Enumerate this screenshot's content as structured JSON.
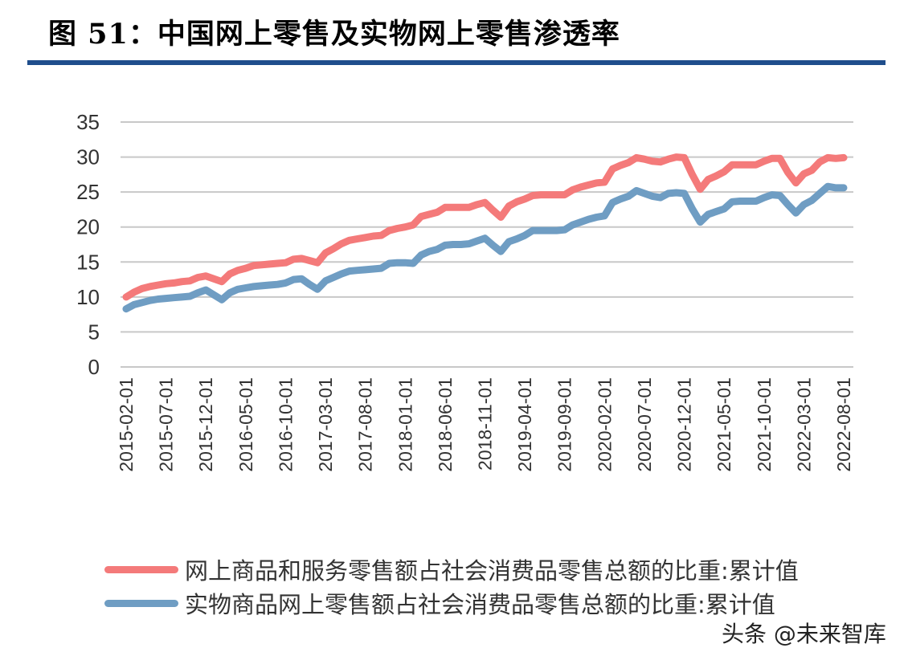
{
  "title": "图 51：中国网上零售及实物网上零售渗透率",
  "watermark": "头条 @未来智库",
  "colors": {
    "series1": "#f47a7a",
    "series2": "#6f9dc3",
    "title_rule": "#1f4e8c",
    "grid": "#c8c8c8"
  },
  "chart_data": {
    "type": "line",
    "title": "",
    "xlabel": "",
    "ylabel": "",
    "ylim": [
      0,
      35
    ],
    "yticks": [
      "0",
      "5",
      "10",
      "15",
      "20",
      "25",
      "30",
      "35"
    ],
    "grid": true,
    "legend_placement": "bottom",
    "xtick_labels": [
      "2015-02-01",
      "2015-07-01",
      "2015-12-01",
      "2016-05-01",
      "2016-10-01",
      "2017-03-01",
      "2017-08-01",
      "2018-01-01",
      "2018-06-01",
      "2018-11-01",
      "2019-04-01",
      "2019-09-01",
      "2020-02-01",
      "2020-07-01",
      "2020-12-01",
      "2021-05-01",
      "2021-10-01",
      "2022-03-01",
      "2022-08-01"
    ],
    "x": [
      "2015-02",
      "2015-03",
      "2015-04",
      "2015-05",
      "2015-06",
      "2015-07",
      "2015-08",
      "2015-09",
      "2015-10",
      "2015-11",
      "2015-12",
      "2016-01",
      "2016-02",
      "2016-03",
      "2016-04",
      "2016-05",
      "2016-06",
      "2016-07",
      "2016-08",
      "2016-09",
      "2016-10",
      "2016-11",
      "2016-12",
      "2017-01",
      "2017-02",
      "2017-03",
      "2017-04",
      "2017-05",
      "2017-06",
      "2017-07",
      "2017-08",
      "2017-09",
      "2017-10",
      "2017-11",
      "2017-12",
      "2018-01",
      "2018-02",
      "2018-03",
      "2018-04",
      "2018-05",
      "2018-06",
      "2018-07",
      "2018-08",
      "2018-09",
      "2018-10",
      "2018-11",
      "2018-12",
      "2019-01",
      "2019-02",
      "2019-03",
      "2019-04",
      "2019-05",
      "2019-06",
      "2019-07",
      "2019-08",
      "2019-09",
      "2019-10",
      "2019-11",
      "2019-12",
      "2020-01",
      "2020-02",
      "2020-03",
      "2020-04",
      "2020-05",
      "2020-06",
      "2020-07",
      "2020-08",
      "2020-09",
      "2020-10",
      "2020-11",
      "2020-12",
      "2021-01",
      "2021-02",
      "2021-03",
      "2021-04",
      "2021-05",
      "2021-06",
      "2021-07",
      "2021-08",
      "2021-09",
      "2021-10",
      "2021-11",
      "2021-12",
      "2022-01",
      "2022-02",
      "2022-03",
      "2022-04",
      "2022-05",
      "2022-06",
      "2022-07",
      "2022-08"
    ],
    "series": [
      {
        "name": "网上商品和服务零售额占社会消费品零售总额的比重:累计值",
        "color": "#f47a7a",
        "values": [
          10.0,
          10.7,
          11.2,
          11.5,
          11.7,
          11.9,
          12.0,
          12.2,
          12.3,
          12.8,
          13.0,
          12.6,
          12.2,
          13.3,
          13.8,
          14.1,
          14.5,
          14.6,
          14.7,
          14.8,
          14.9,
          15.4,
          15.5,
          15.2,
          14.9,
          16.3,
          16.9,
          17.6,
          18.1,
          18.3,
          18.5,
          18.7,
          18.8,
          19.5,
          19.8,
          20.0,
          20.3,
          21.5,
          21.8,
          22.1,
          22.8,
          22.8,
          22.8,
          22.8,
          23.2,
          23.5,
          22.4,
          21.4,
          23.0,
          23.6,
          24.0,
          24.5,
          24.6,
          24.6,
          24.6,
          24.6,
          25.3,
          25.7,
          26.0,
          26.3,
          26.4,
          28.3,
          28.8,
          29.2,
          29.9,
          29.7,
          29.4,
          29.3,
          29.7,
          30.0,
          29.9,
          27.5,
          25.4,
          26.8,
          27.3,
          27.9,
          28.9,
          28.9,
          28.9,
          28.9,
          29.4,
          29.8,
          29.8,
          27.8,
          26.3,
          27.6,
          28.1,
          29.3,
          29.9,
          29.8,
          29.9
        ]
      },
      {
        "name": "实物商品网上零售额占社会消费品零售总额的比重:累计值",
        "color": "#6f9dc3",
        "values": [
          8.3,
          8.9,
          9.2,
          9.5,
          9.7,
          9.8,
          9.9,
          10.0,
          10.1,
          10.6,
          11.0,
          10.3,
          9.6,
          10.6,
          11.1,
          11.3,
          11.5,
          11.6,
          11.7,
          11.8,
          12.0,
          12.5,
          12.6,
          11.8,
          11.1,
          12.3,
          12.8,
          13.3,
          13.7,
          13.8,
          13.9,
          14.0,
          14.1,
          14.8,
          14.9,
          14.9,
          14.8,
          16.0,
          16.5,
          16.8,
          17.4,
          17.5,
          17.5,
          17.6,
          18.0,
          18.4,
          17.4,
          16.5,
          17.9,
          18.3,
          18.8,
          19.5,
          19.5,
          19.5,
          19.5,
          19.6,
          20.3,
          20.7,
          21.1,
          21.4,
          21.6,
          23.5,
          24.0,
          24.4,
          25.2,
          24.8,
          24.4,
          24.2,
          24.8,
          24.9,
          24.8,
          22.6,
          20.7,
          21.8,
          22.2,
          22.6,
          23.6,
          23.7,
          23.7,
          23.7,
          24.2,
          24.6,
          24.5,
          23.2,
          22.0,
          23.2,
          23.8,
          24.8,
          25.8,
          25.6,
          25.6
        ]
      }
    ]
  }
}
